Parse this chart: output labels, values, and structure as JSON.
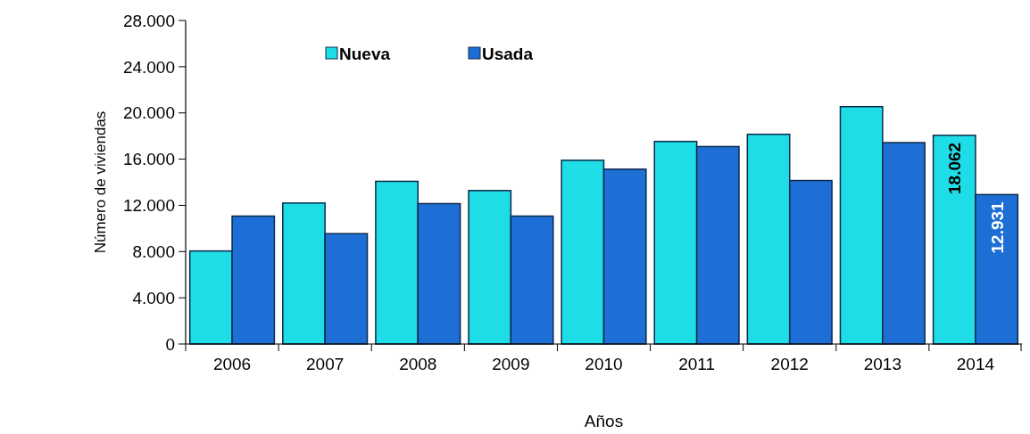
{
  "chart_data": {
    "type": "bar",
    "xlabel": "Años",
    "ylabel": "Número de viviendas",
    "categories": [
      "2006",
      "2007",
      "2008",
      "2009",
      "2010",
      "2011",
      "2012",
      "2013",
      "2014"
    ],
    "series": [
      {
        "name": "Nueva",
        "color": "#1fdde6",
        "values": [
          8050,
          12200,
          14080,
          13280,
          15900,
          17530,
          18150,
          20540,
          18062
        ],
        "value_labels": [
          null,
          null,
          null,
          null,
          null,
          null,
          null,
          null,
          "18.062"
        ]
      },
      {
        "name": "Usada",
        "color": "#1d6fd6",
        "values": [
          11070,
          9550,
          12150,
          11070,
          15130,
          17090,
          14150,
          17430,
          12931
        ],
        "value_labels": [
          null,
          null,
          null,
          null,
          null,
          null,
          null,
          null,
          "12.931"
        ]
      }
    ],
    "ylim": [
      0,
      28000
    ],
    "yticks": [
      {
        "value": 0,
        "label": "0"
      },
      {
        "value": 4000,
        "label": "4.000"
      },
      {
        "value": 8000,
        "label": "8.000"
      },
      {
        "value": 12000,
        "label": "12.000"
      },
      {
        "value": 16000,
        "label": "16.000"
      },
      {
        "value": 20000,
        "label": "20.000"
      },
      {
        "value": 24000,
        "label": "24.000"
      },
      {
        "value": 28000,
        "label": "28.000"
      }
    ],
    "grid": false,
    "legend": "top"
  }
}
